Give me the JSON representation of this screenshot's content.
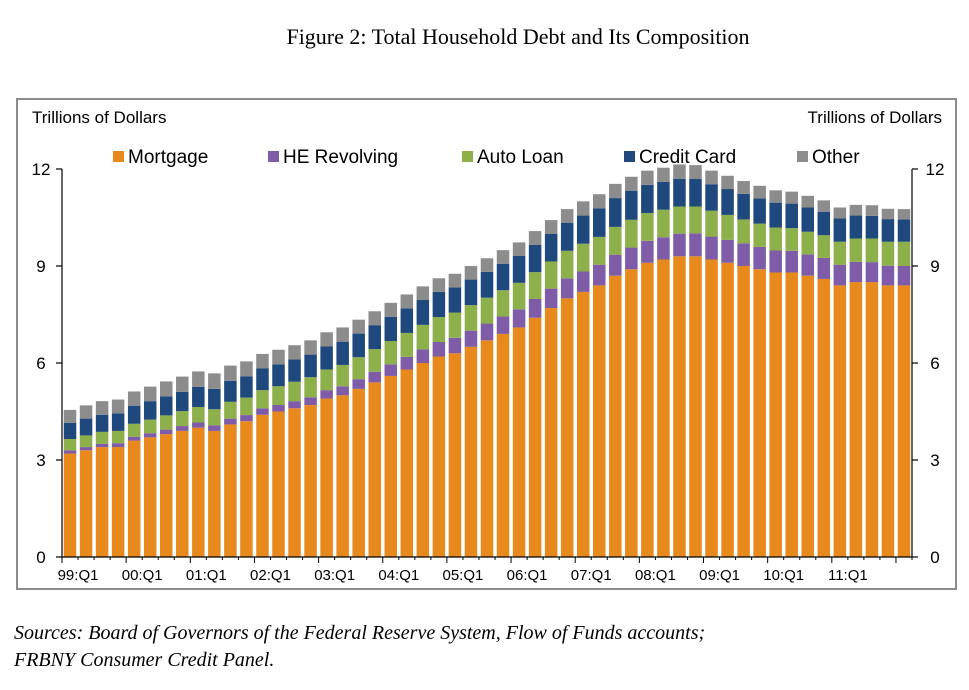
{
  "figure_title": "Figure 2: Total Household Debt and Its Composition",
  "sources_line1": "Sources: Board of Governors of the Federal Reserve System, Flow of Funds accounts;",
  "sources_line2": "FRBNY Consumer Credit Panel.",
  "chart_data": {
    "type": "bar",
    "stacked": true,
    "ylabel_left": "Trillions of Dollars",
    "ylabel_right": "Trillions of Dollars",
    "ylim": [
      0,
      12
    ],
    "yticks": [
      "0",
      "3",
      "6",
      "9",
      "12"
    ],
    "x_tick_labels": [
      "99:Q1",
      "00:Q1",
      "01:Q1",
      "02:Q1",
      "03:Q1",
      "04:Q1",
      "05:Q1",
      "06:Q1",
      "07:Q1",
      "08:Q1",
      "09:Q1",
      "10:Q1",
      "11:Q1"
    ],
    "legend_position": "top",
    "categories": [
      "99:Q1",
      "99:Q2",
      "99:Q3",
      "99:Q4",
      "00:Q1",
      "00:Q2",
      "00:Q3",
      "00:Q4",
      "01:Q1",
      "01:Q2",
      "01:Q3",
      "01:Q4",
      "02:Q1",
      "02:Q2",
      "02:Q3",
      "02:Q4",
      "03:Q1",
      "03:Q2",
      "03:Q3",
      "03:Q4",
      "04:Q1",
      "04:Q2",
      "04:Q3",
      "04:Q4",
      "05:Q1",
      "05:Q2",
      "05:Q3",
      "05:Q4",
      "06:Q1",
      "06:Q2",
      "06:Q3",
      "06:Q4",
      "07:Q1",
      "07:Q2",
      "07:Q3",
      "07:Q4",
      "08:Q1",
      "08:Q2",
      "08:Q3",
      "08:Q4",
      "09:Q1",
      "09:Q2",
      "09:Q3",
      "09:Q4",
      "10:Q1",
      "10:Q2",
      "10:Q3",
      "10:Q4",
      "11:Q1",
      "11:Q2",
      "11:Q3",
      "11:Q4",
      "12:Q1"
    ],
    "series": [
      {
        "name": "Mortgage",
        "color": "#E8891D",
        "values": [
          3.2,
          3.3,
          3.4,
          3.4,
          3.6,
          3.7,
          3.8,
          3.9,
          4.0,
          3.9,
          4.1,
          4.2,
          4.4,
          4.5,
          4.6,
          4.7,
          4.9,
          5.0,
          5.2,
          5.4,
          5.6,
          5.8,
          6.0,
          6.2,
          6.3,
          6.5,
          6.7,
          6.9,
          7.1,
          7.4,
          7.7,
          8.0,
          8.2,
          8.4,
          8.7,
          8.9,
          9.1,
          9.2,
          9.3,
          9.3,
          9.2,
          9.1,
          9.0,
          8.9,
          8.8,
          8.8,
          8.7,
          8.6,
          8.4,
          8.5,
          8.5,
          8.4,
          8.4
        ]
      },
      {
        "name": "HE Revolving",
        "color": "#7E5CA8",
        "values": [
          0.1,
          0.1,
          0.1,
          0.12,
          0.12,
          0.13,
          0.14,
          0.15,
          0.16,
          0.17,
          0.18,
          0.19,
          0.2,
          0.2,
          0.22,
          0.24,
          0.26,
          0.28,
          0.3,
          0.33,
          0.36,
          0.39,
          0.42,
          0.45,
          0.48,
          0.5,
          0.52,
          0.54,
          0.56,
          0.58,
          0.6,
          0.62,
          0.63,
          0.64,
          0.65,
          0.67,
          0.68,
          0.69,
          0.7,
          0.71,
          0.71,
          0.71,
          0.7,
          0.69,
          0.68,
          0.67,
          0.66,
          0.65,
          0.64,
          0.63,
          0.62,
          0.61,
          0.6
        ]
      },
      {
        "name": "Auto Loan",
        "color": "#8DB04A",
        "values": [
          0.35,
          0.36,
          0.37,
          0.38,
          0.4,
          0.42,
          0.44,
          0.46,
          0.48,
          0.5,
          0.52,
          0.54,
          0.56,
          0.58,
          0.6,
          0.62,
          0.64,
          0.66,
          0.68,
          0.7,
          0.72,
          0.74,
          0.76,
          0.77,
          0.78,
          0.79,
          0.8,
          0.81,
          0.82,
          0.83,
          0.84,
          0.85,
          0.86,
          0.86,
          0.86,
          0.86,
          0.86,
          0.85,
          0.84,
          0.83,
          0.8,
          0.77,
          0.74,
          0.72,
          0.71,
          0.7,
          0.7,
          0.7,
          0.71,
          0.72,
          0.73,
          0.74,
          0.75
        ]
      },
      {
        "name": "Credit Card",
        "color": "#1F497D",
        "values": [
          0.5,
          0.52,
          0.53,
          0.54,
          0.56,
          0.57,
          0.59,
          0.6,
          0.62,
          0.63,
          0.65,
          0.66,
          0.67,
          0.68,
          0.69,
          0.7,
          0.71,
          0.72,
          0.73,
          0.74,
          0.75,
          0.76,
          0.77,
          0.78,
          0.78,
          0.79,
          0.8,
          0.82,
          0.83,
          0.84,
          0.85,
          0.86,
          0.87,
          0.88,
          0.89,
          0.89,
          0.87,
          0.86,
          0.86,
          0.85,
          0.82,
          0.8,
          0.79,
          0.78,
          0.77,
          0.76,
          0.75,
          0.73,
          0.72,
          0.71,
          0.7,
          0.7,
          0.69
        ]
      },
      {
        "name": "Other",
        "color": "#8C8C8C",
        "values": [
          0.4,
          0.41,
          0.42,
          0.43,
          0.44,
          0.45,
          0.46,
          0.47,
          0.48,
          0.48,
          0.47,
          0.46,
          0.45,
          0.45,
          0.44,
          0.44,
          0.44,
          0.44,
          0.43,
          0.43,
          0.43,
          0.43,
          0.42,
          0.42,
          0.42,
          0.42,
          0.42,
          0.42,
          0.42,
          0.43,
          0.43,
          0.43,
          0.44,
          0.44,
          0.44,
          0.44,
          0.44,
          0.44,
          0.44,
          0.43,
          0.42,
          0.41,
          0.4,
          0.39,
          0.38,
          0.37,
          0.36,
          0.35,
          0.34,
          0.33,
          0.33,
          0.32,
          0.32
        ]
      }
    ]
  }
}
